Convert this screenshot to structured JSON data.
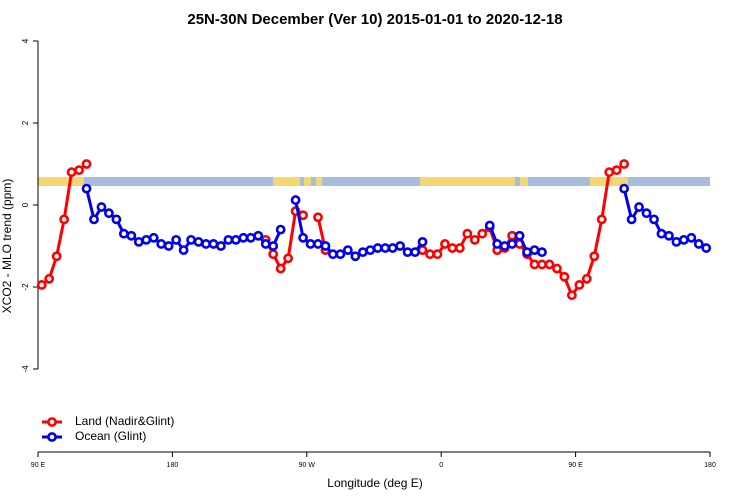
{
  "chart_data": {
    "type": "line",
    "title": "25N-30N December (Ver 10)   2015-01-01 to 2020-12-18",
    "x_label": "Longitude (deg E)",
    "y_label": "XCO2 - MLO trend (ppm)",
    "xlim": [
      90,
      540
    ],
    "xticks": [
      {
        "value": 90,
        "label": "90 E"
      },
      180,
      {
        "value": 270,
        "label": "90 W"
      },
      {
        "value": 360,
        "label": "0"
      },
      {
        "value": 450,
        "label": "90 E"
      },
      {
        "value": 540,
        "label": "180"
      }
    ],
    "ylim": [
      -6,
      4
    ],
    "yticks": [
      4,
      2,
      0,
      -2,
      -4
    ],
    "legend": "bottom-left",
    "x": [
      92.5,
      97.5,
      102.5,
      107.5,
      112.5,
      117.5,
      122.5,
      127.5,
      132.5,
      137.5,
      142.5,
      147.5,
      152.5,
      157.5,
      162.5,
      167.5,
      172.5,
      177.5,
      182.5,
      187.5,
      192.5,
      197.5,
      202.5,
      207.5,
      212.5,
      217.5,
      222.5,
      227.5,
      232.5,
      237.5,
      242.5,
      247.5,
      252.5,
      257.5,
      262.5,
      267.5,
      272.5,
      277.5,
      282.5,
      287.5,
      292.5,
      297.5,
      302.5,
      307.5,
      312.5,
      317.5,
      322.5,
      327.5,
      332.5,
      337.5,
      342.5,
      347.5,
      352.5,
      357.5,
      362.5,
      367.5,
      372.5,
      377.5,
      382.5,
      387.5,
      392.5,
      397.5,
      402.5,
      407.5,
      412.5,
      417.5,
      422.5,
      427.5,
      432.5,
      437.5,
      442.5,
      447.5,
      452.5,
      457.5,
      462.5,
      467.5,
      472.5,
      477.5,
      482.5,
      487.5,
      492.5,
      497.5,
      502.5,
      507.5,
      512.5,
      517.5,
      522.5,
      527.5,
      532.5,
      537.5
    ],
    "series": [
      {
        "name": "Land (Nadir&Glint)",
        "color": "#ff0000",
        "values": [
          -1.95,
          -1.8,
          -1.25,
          -0.35,
          0.8,
          0.85,
          1.0,
          null,
          null,
          null,
          null,
          null,
          null,
          null,
          null,
          null,
          null,
          null,
          null,
          null,
          null,
          null,
          null,
          null,
          null,
          null,
          null,
          null,
          null,
          null,
          -0.85,
          -1.2,
          -1.55,
          -1.3,
          -0.15,
          -0.25,
          null,
          -0.3,
          -1.1,
          null,
          null,
          null,
          null,
          null,
          null,
          null,
          null,
          null,
          null,
          null,
          null,
          -1.1,
          -1.2,
          -1.2,
          -0.95,
          -1.05,
          -1.05,
          -0.7,
          -0.85,
          -0.7,
          -0.55,
          -1.1,
          -1.05,
          -0.75,
          -0.95,
          -1.2,
          -1.45,
          -1.45,
          -1.45,
          -1.55,
          -1.75,
          -2.2,
          -1.95,
          -1.8,
          -1.25,
          -0.35,
          0.8,
          0.85,
          1.0,
          null,
          null,
          null,
          null,
          null,
          null,
          null,
          null,
          null,
          null,
          null
        ]
      },
      {
        "name": "Ocean (Glint)",
        "color": "#0000ee",
        "values": [
          null,
          null,
          null,
          null,
          null,
          null,
          0.4,
          -0.35,
          -0.05,
          -0.2,
          -0.35,
          -0.7,
          -0.75,
          -0.9,
          -0.85,
          -0.8,
          -0.95,
          -1.0,
          -0.85,
          -1.1,
          -0.85,
          -0.9,
          -0.95,
          -0.95,
          -1.0,
          -0.85,
          -0.85,
          -0.8,
          -0.8,
          -0.75,
          -0.95,
          -1.0,
          -0.6,
          null,
          0.12,
          -0.8,
          -0.95,
          -0.95,
          -1.0,
          -1.2,
          -1.2,
          -1.1,
          -1.25,
          -1.15,
          -1.1,
          -1.05,
          -1.05,
          -1.05,
          -1.0,
          -1.15,
          -1.15,
          -0.9,
          null,
          null,
          null,
          null,
          null,
          null,
          null,
          null,
          -0.5,
          -0.95,
          -1.0,
          -0.95,
          -0.75,
          -1.15,
          -1.1,
          -1.15,
          null,
          null,
          null,
          null,
          null,
          null,
          null,
          null,
          null,
          null,
          0.4,
          -0.35,
          -0.05,
          -0.2,
          -0.35,
          -0.7,
          -0.75,
          -0.9,
          -0.85,
          -0.8,
          -0.95,
          -1.05
        ]
      }
    ]
  }
}
